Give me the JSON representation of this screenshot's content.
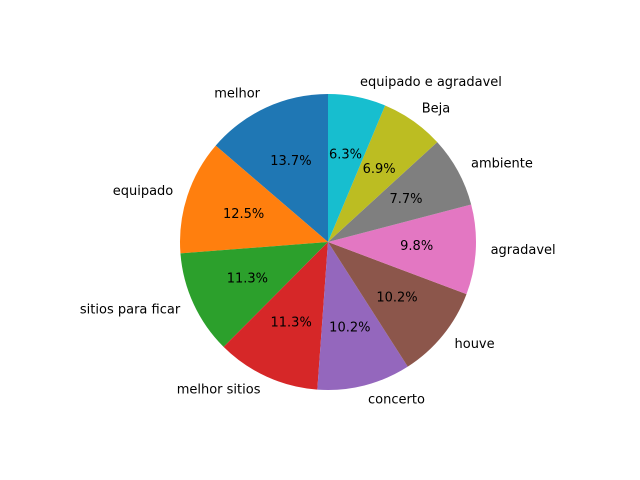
{
  "chart_data": {
    "type": "pie",
    "title": "",
    "start_angle_deg": 90,
    "direction": "counterclockwise",
    "slices": [
      {
        "label": "melhor",
        "value": 13.7,
        "pct_label": "13.7%",
        "color": "#1f77b4"
      },
      {
        "label": "equipado",
        "value": 12.5,
        "pct_label": "12.5%",
        "color": "#ff7f0e"
      },
      {
        "label": "sitios para ficar",
        "value": 11.3,
        "pct_label": "11.3%",
        "color": "#2ca02c"
      },
      {
        "label": "melhor sitios",
        "value": 11.3,
        "pct_label": "11.3%",
        "color": "#d62728"
      },
      {
        "label": "concerto",
        "value": 10.2,
        "pct_label": "10.2%",
        "color": "#9467bd"
      },
      {
        "label": "houve",
        "value": 10.2,
        "pct_label": "10.2%",
        "color": "#8c564b"
      },
      {
        "label": "agradavel",
        "value": 9.8,
        "pct_label": "9.8%",
        "color": "#e377c2"
      },
      {
        "label": "ambiente",
        "value": 7.7,
        "pct_label": "7.7%",
        "color": "#7f7f7f"
      },
      {
        "label": "Beja",
        "value": 6.9,
        "pct_label": "6.9%",
        "color": "#bcbd22"
      },
      {
        "label": "equipado e agradavel",
        "value": 6.3,
        "pct_label": "6.3%",
        "color": "#17becf"
      }
    ]
  }
}
